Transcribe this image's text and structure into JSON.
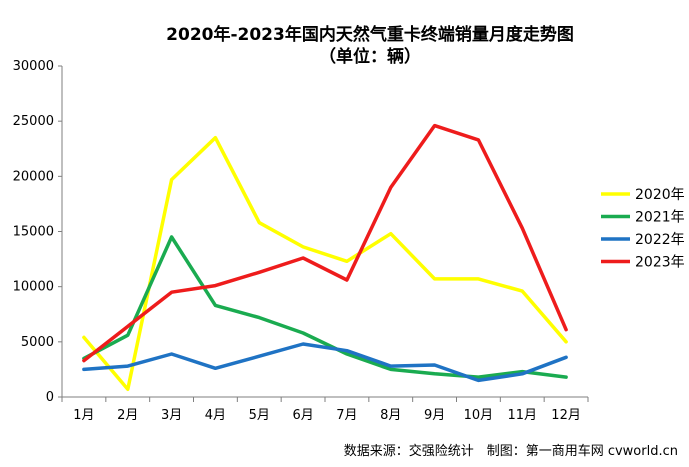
{
  "chart_data": {
    "type": "line",
    "title": "2020年-2023年国内天然气重卡终端销量月度走势图",
    "subtitle": "（单位：辆）",
    "categories": [
      "1月",
      "2月",
      "3月",
      "4月",
      "5月",
      "6月",
      "7月",
      "8月",
      "9月",
      "10月",
      "11月",
      "12月"
    ],
    "ylim": [
      0,
      30000
    ],
    "yticks": [
      0,
      5000,
      10000,
      15000,
      20000,
      25000,
      30000
    ],
    "grid": false,
    "legend": "right",
    "series": [
      {
        "name": "2020年",
        "color": "#FFFF00",
        "values": [
          5400,
          700,
          19700,
          23500,
          15800,
          13600,
          12300,
          14800,
          10700,
          10700,
          9600,
          5000
        ]
      },
      {
        "name": "2021年",
        "color": "#1AAB50",
        "values": [
          3500,
          5600,
          14500,
          8300,
          7200,
          5800,
          3900,
          2500,
          2100,
          1800,
          2300,
          1800
        ]
      },
      {
        "name": "2022年",
        "color": "#1F73C4",
        "values": [
          2500,
          2800,
          3900,
          2600,
          3700,
          4800,
          4200,
          2800,
          2900,
          1500,
          2100,
          3600
        ]
      },
      {
        "name": "2023年",
        "color": "#EE1C1C",
        "values": [
          3300,
          6400,
          9500,
          10100,
          11300,
          12600,
          10600,
          19000,
          24600,
          23300,
          15300,
          6100
        ]
      }
    ],
    "source": "数据来源：交强险统计　制图：第一商用车网 cvworld.cn"
  }
}
